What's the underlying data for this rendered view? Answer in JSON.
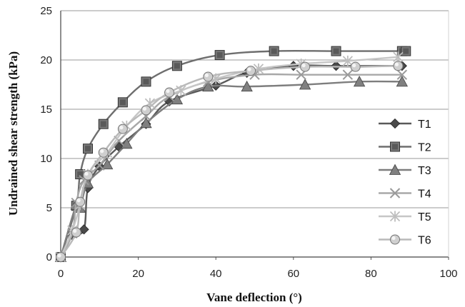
{
  "chart_data": {
    "type": "line",
    "xlabel": "Vane deflection (°)",
    "ylabel": "Undrained shear strength (kPa)",
    "xlim": [
      0,
      100
    ],
    "ylim": [
      0,
      25
    ],
    "x_ticks": [
      "0",
      "20",
      "40",
      "60",
      "80",
      "100"
    ],
    "y_ticks": [
      "0",
      "5",
      "10",
      "15",
      "20",
      "25"
    ],
    "grid": "horizontal",
    "legend_position": "right",
    "series": [
      {
        "name": "T1",
        "marker": "diamond",
        "color": "#5a5a5a",
        "x": [
          0,
          3,
          6,
          7,
          10,
          15,
          22,
          28,
          40,
          48,
          60,
          71,
          88
        ],
        "y": [
          0,
          2.2,
          2.8,
          7.0,
          9.2,
          11.2,
          13.5,
          15.8,
          17.4,
          18.7,
          19.4,
          19.4,
          19.4
        ]
      },
      {
        "name": "T2",
        "marker": "square",
        "color": "#6e6e6e",
        "x": [
          0,
          4,
          5,
          7,
          11,
          16,
          22,
          30,
          41,
          55,
          71,
          88,
          89
        ],
        "y": [
          0,
          5.2,
          8.4,
          11.0,
          13.5,
          15.7,
          17.8,
          19.4,
          20.5,
          20.9,
          20.9,
          20.9,
          20.9
        ]
      },
      {
        "name": "T3",
        "marker": "triangle",
        "color": "#7e7e7e",
        "x": [
          0,
          4,
          5,
          7,
          12,
          17,
          22,
          30,
          38,
          48,
          63,
          77,
          88
        ],
        "y": [
          0,
          5.3,
          5.0,
          7.5,
          9.4,
          11.5,
          13.6,
          16.0,
          17.3,
          17.3,
          17.5,
          17.8,
          17.8
        ]
      },
      {
        "name": "T4",
        "marker": "x",
        "color": "#a8a8a8",
        "x": [
          0,
          3,
          4,
          6,
          10,
          15,
          22,
          28,
          38,
          50,
          62,
          74,
          88
        ],
        "y": [
          0,
          2.4,
          5.5,
          7.8,
          9.3,
          11.8,
          14.3,
          16.3,
          17.8,
          18.5,
          18.5,
          18.5,
          18.5
        ]
      },
      {
        "name": "T5",
        "marker": "asterisk",
        "color": "#c6c6c6",
        "x": [
          0,
          3,
          5,
          7,
          12,
          17,
          23,
          31,
          40,
          51,
          62,
          74,
          87
        ],
        "y": [
          0,
          2.7,
          5.3,
          8.4,
          10.6,
          13.3,
          15.6,
          16.9,
          18.1,
          19.1,
          19.6,
          19.9,
          20.3
        ]
      },
      {
        "name": "T6",
        "marker": "circle",
        "color": "#b9b9b9",
        "x": [
          0,
          4,
          5,
          7,
          11,
          16,
          22,
          28,
          38,
          49,
          63,
          76,
          87
        ],
        "y": [
          0,
          2.5,
          5.6,
          8.3,
          10.6,
          13.0,
          14.9,
          16.7,
          18.3,
          18.9,
          19.3,
          19.3,
          19.4
        ]
      }
    ]
  }
}
